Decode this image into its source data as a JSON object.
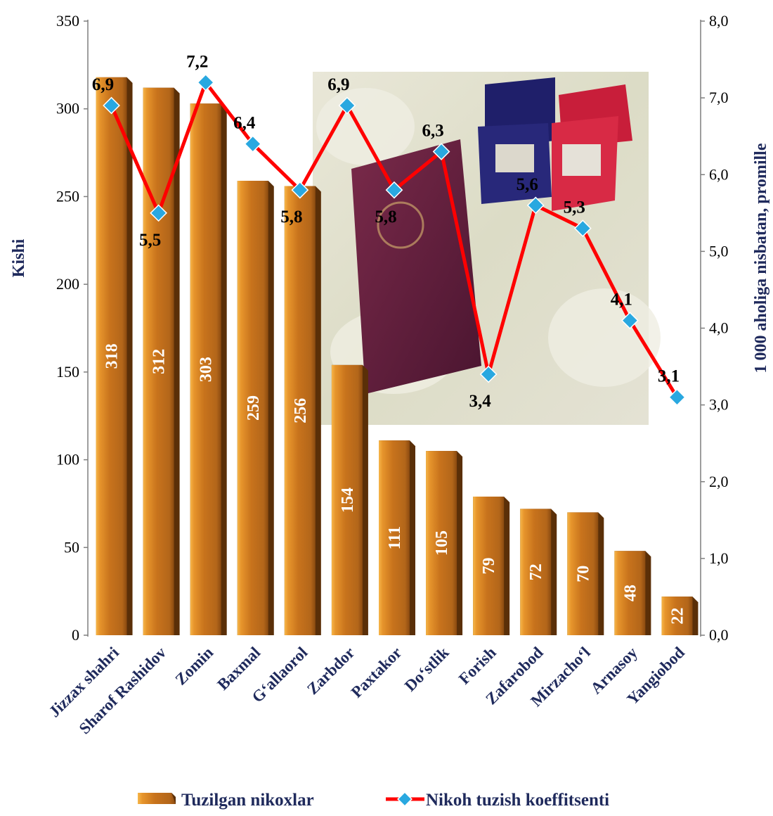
{
  "chart_data": {
    "type": "bar",
    "categories": [
      "Jizzax shahri",
      "Sharof Rashidov",
      "Zomin",
      "Baxmal",
      "G‘allaorol",
      "Zarbdor",
      "Paxtakor",
      "Do‘stlik",
      "Forish",
      "Zafarobod",
      "Mirzacho‘l",
      "Arnasoy",
      "Yangiobod"
    ],
    "series": [
      {
        "name": "Tuzilgan nikoxlar",
        "type": "bar",
        "axis": "left",
        "color": "#C8731C",
        "values": [
          318,
          312,
          303,
          259,
          256,
          154,
          111,
          105,
          79,
          72,
          70,
          48,
          22
        ],
        "labels": [
          "318",
          "312",
          "303",
          "259",
          "256",
          "154",
          "111",
          "105",
          "79",
          "72",
          "70",
          "48",
          "22"
        ]
      },
      {
        "name": "Nikoh tuzish koeffitsenti",
        "type": "line",
        "axis": "right",
        "color": "#FF0000",
        "marker_color": "#29A8E0",
        "values": [
          6.9,
          5.5,
          7.2,
          6.4,
          5.8,
          6.9,
          5.8,
          6.3,
          3.4,
          5.6,
          5.3,
          4.1,
          3.1
        ],
        "labels": [
          "6,9",
          "5,5",
          "7,2",
          "6,4",
          "5,8",
          "6,9",
          "5,8",
          "6,3",
          "3,4",
          "5,6",
          "5,3",
          "4,1",
          "3,1"
        ]
      }
    ],
    "ylabel": "Kishi",
    "y2label": "1 000 aholiga nisbatan, promille",
    "ylim": [
      0,
      350
    ],
    "y2lim": [
      0,
      8
    ],
    "yticks": [
      "0",
      "50",
      "100",
      "150",
      "200",
      "250",
      "300",
      "350"
    ],
    "y2ticks": [
      "0,0",
      "1,0",
      "2,0",
      "3,0",
      "4,0",
      "5,0",
      "6,0",
      "7,0",
      "8,0"
    ],
    "legend_position": "bottom",
    "grid": false
  }
}
